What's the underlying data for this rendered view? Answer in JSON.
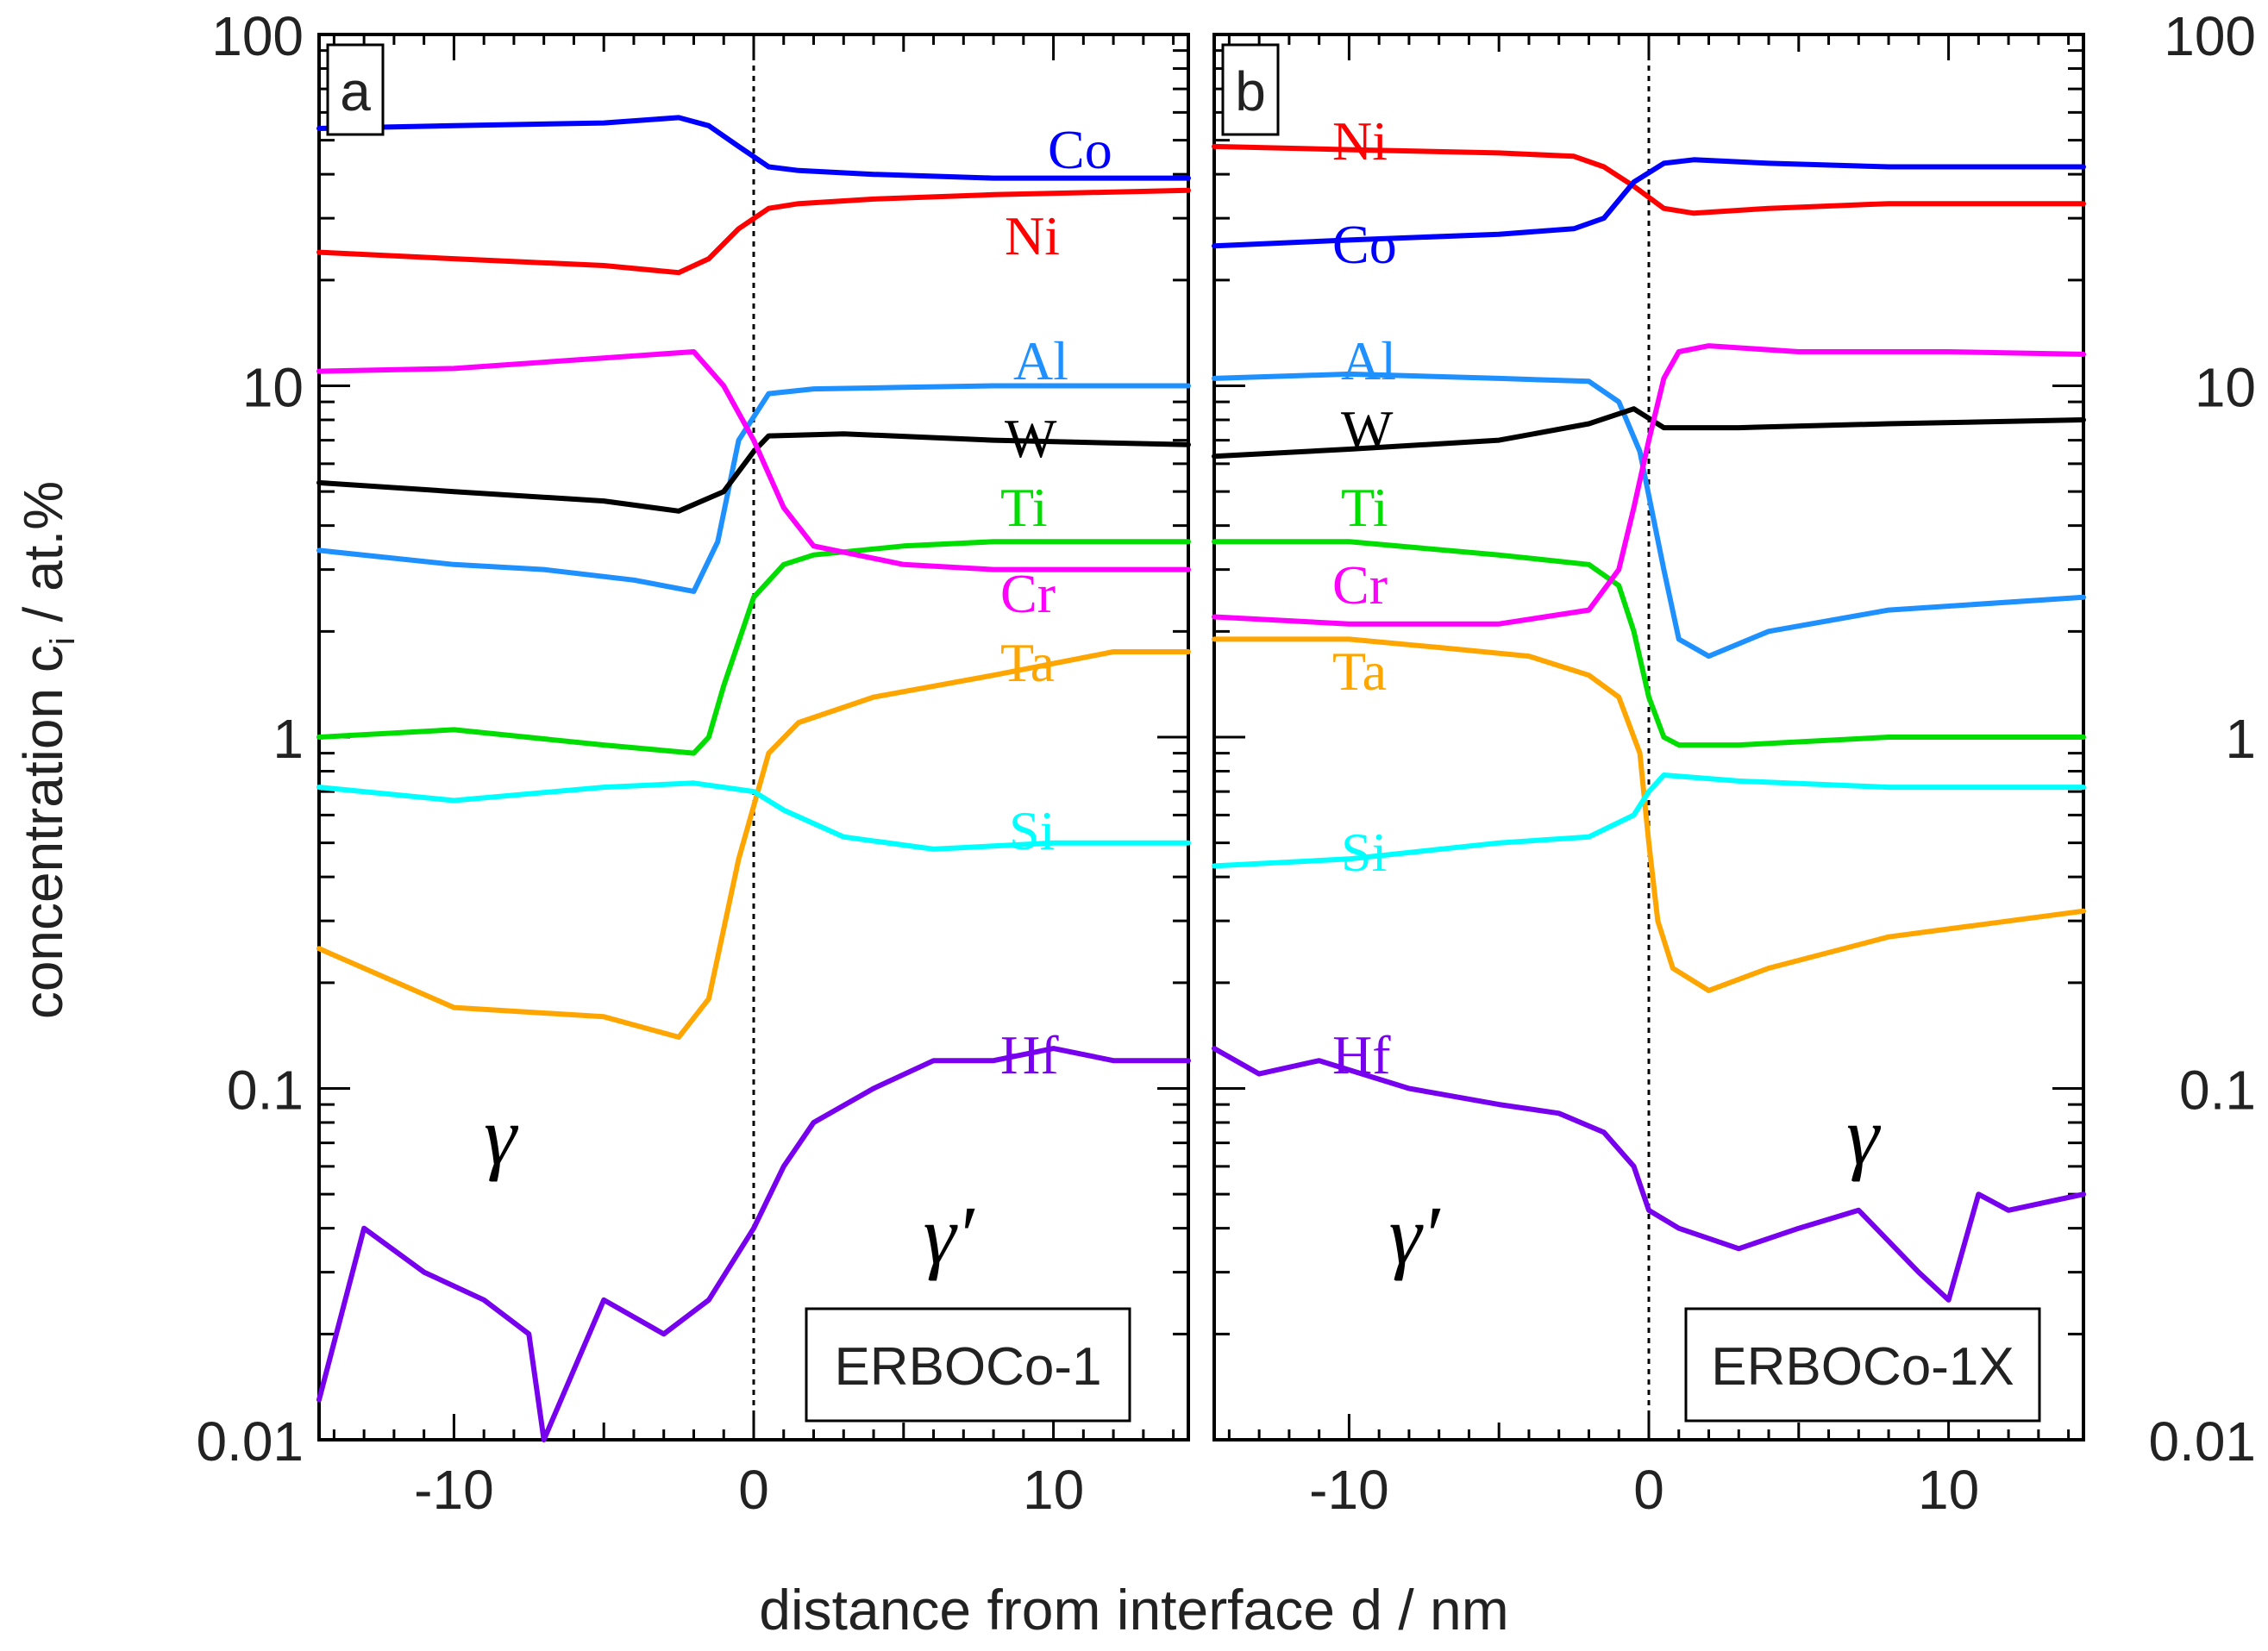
{
  "figure": {
    "ylabel": "concentration c",
    "ylabel_sub": "i",
    "ylabel_unit": " / at.%",
    "xlabel": "distance from interface d / nm"
  },
  "chart_data": [
    {
      "type": "line",
      "panel_label": "a",
      "alloy": "ERBOCo-1",
      "xlim": [
        -14.5,
        14.5
      ],
      "ylim": [
        0.01,
        100
      ],
      "yscale": "log",
      "xticks": [
        -10,
        0,
        10
      ],
      "yticks": [
        0.01,
        0.1,
        1,
        10,
        100
      ],
      "xtick_labels": [
        "-10",
        "0",
        "10"
      ],
      "ytick_labels": [
        "0.01",
        "0.1",
        "1",
        "10",
        "100"
      ],
      "phase_left": "γ",
      "phase_right": "γ′",
      "interface_line_x": 0,
      "series": [
        {
          "name": "Co",
          "color": "#0000ff",
          "x": [
            -14.5,
            -10,
            -5,
            -2.5,
            -1.5,
            -0.5,
            0.5,
            1.5,
            4,
            8,
            14.5
          ],
          "y": [
            54,
            55,
            56,
            58,
            55,
            48,
            42,
            41,
            40,
            39,
            39
          ]
        },
        {
          "name": "Ni",
          "color": "#ff0000",
          "x": [
            -14.5,
            -10,
            -5,
            -2.5,
            -1.5,
            -0.5,
            0.5,
            1.5,
            4,
            8,
            14.5
          ],
          "y": [
            24,
            23,
            22,
            21,
            23,
            28,
            32,
            33,
            34,
            35,
            36
          ]
        },
        {
          "name": "Al",
          "color": "#1e90ff",
          "x": [
            -14.5,
            -10,
            -7,
            -4,
            -2,
            -1.2,
            -0.5,
            0.5,
            2,
            5,
            8,
            14.5
          ],
          "y": [
            3.4,
            3.1,
            3.0,
            2.8,
            2.6,
            3.6,
            7.0,
            9.5,
            9.8,
            9.9,
            10.0,
            10.0
          ]
        },
        {
          "name": "W",
          "color": "#000000",
          "x": [
            -14.5,
            -10,
            -5,
            -2.5,
            -1,
            0,
            0.5,
            3,
            8,
            14.5
          ],
          "y": [
            5.3,
            5.0,
            4.7,
            4.4,
            5.0,
            6.5,
            7.2,
            7.3,
            7.0,
            6.8
          ]
        },
        {
          "name": "Ti",
          "color": "#00dd00",
          "x": [
            -14.5,
            -10,
            -5,
            -2,
            -1.5,
            -1,
            0,
            1,
            2,
            5,
            8,
            14.5
          ],
          "y": [
            1.0,
            1.05,
            0.95,
            0.9,
            1.0,
            1.4,
            2.5,
            3.1,
            3.3,
            3.5,
            3.6,
            3.6
          ]
        },
        {
          "name": "Cr",
          "color": "#ff00ff",
          "x": [
            -14.5,
            -10,
            -5,
            -2,
            -1,
            0,
            1,
            2,
            5,
            8,
            14.5
          ],
          "y": [
            11.0,
            11.2,
            12.0,
            12.5,
            10.0,
            7.0,
            4.5,
            3.5,
            3.1,
            3.0,
            3.0
          ]
        },
        {
          "name": "Ta",
          "color": "#ffa500",
          "x": [
            -14.5,
            -10,
            -5,
            -2.5,
            -1.5,
            -0.5,
            0.5,
            1.5,
            4,
            8,
            12,
            14.5
          ],
          "y": [
            0.25,
            0.17,
            0.16,
            0.14,
            0.18,
            0.45,
            0.9,
            1.1,
            1.3,
            1.5,
            1.75,
            1.75
          ]
        },
        {
          "name": "Si",
          "color": "#00ffff",
          "x": [
            -14.5,
            -10,
            -5,
            -2,
            0,
            1,
            3,
            6,
            10,
            14.5
          ],
          "y": [
            0.72,
            0.66,
            0.72,
            0.74,
            0.7,
            0.62,
            0.52,
            0.48,
            0.5,
            0.5
          ]
        },
        {
          "name": "Hf",
          "color": "#7700ee",
          "x": [
            -14.5,
            -13,
            -11,
            -9,
            -7.5,
            -7,
            -5,
            -3,
            -1.5,
            0,
            1,
            2,
            4,
            6,
            8,
            10,
            12,
            14.5
          ],
          "y": [
            0.013,
            0.04,
            0.03,
            0.025,
            0.02,
            0.01,
            0.025,
            0.02,
            0.025,
            0.04,
            0.06,
            0.08,
            0.1,
            0.12,
            0.12,
            0.13,
            0.12,
            0.12
          ]
        }
      ]
    },
    {
      "type": "line",
      "panel_label": "b",
      "alloy": "ERBOCo-1X",
      "xlim": [
        -14.5,
        14.5
      ],
      "ylim": [
        0.01,
        100
      ],
      "yscale": "log",
      "xticks": [
        -10,
        0,
        10
      ],
      "yticks": [
        0.01,
        0.1,
        1,
        10,
        100
      ],
      "xtick_labels": [
        "-10",
        "0",
        "10"
      ],
      "ytick_labels": [
        "0.01",
        "0.1",
        "1",
        "10",
        "100"
      ],
      "phase_left": "γ′",
      "phase_right": "γ",
      "interface_line_x": 0,
      "series": [
        {
          "name": "Ni",
          "color": "#ff0000",
          "x": [
            -14.5,
            -10,
            -5,
            -2.5,
            -1.5,
            -0.5,
            0.5,
            1.5,
            4,
            8,
            14.5
          ],
          "y": [
            48,
            47,
            46,
            45,
            42,
            37,
            32,
            31,
            32,
            33,
            33
          ]
        },
        {
          "name": "Co",
          "color": "#0000ff",
          "x": [
            -14.5,
            -10,
            -5,
            -2.5,
            -1.5,
            -0.5,
            0.5,
            1.5,
            4,
            8,
            14.5
          ],
          "y": [
            25,
            26,
            27,
            28,
            30,
            38,
            43,
            44,
            43,
            42,
            42
          ]
        },
        {
          "name": "Al",
          "color": "#1e90ff",
          "x": [
            -14.5,
            -10,
            -5,
            -2,
            -1,
            -0.3,
            0.5,
            1,
            2,
            4,
            8,
            14.5
          ],
          "y": [
            10.5,
            10.8,
            10.5,
            10.3,
            9.0,
            6.5,
            3.0,
            1.9,
            1.7,
            2.0,
            2.3,
            2.5
          ]
        },
        {
          "name": "W",
          "color": "#000000",
          "x": [
            -14.5,
            -10,
            -5,
            -2,
            -0.5,
            0.5,
            3,
            8,
            14.5
          ],
          "y": [
            6.3,
            6.6,
            7.0,
            7.8,
            8.6,
            7.6,
            7.6,
            7.8,
            8.0
          ]
        },
        {
          "name": "Ti",
          "color": "#00dd00",
          "x": [
            -14.5,
            -10,
            -5,
            -2,
            -1,
            -0.5,
            0,
            0.5,
            1,
            3,
            8,
            14.5
          ],
          "y": [
            3.6,
            3.6,
            3.3,
            3.1,
            2.7,
            2.0,
            1.3,
            1.0,
            0.95,
            0.95,
            1.0,
            1.0
          ]
        },
        {
          "name": "Cr",
          "color": "#ff00ff",
          "x": [
            -14.5,
            -10,
            -5,
            -2,
            -1,
            -0.5,
            0,
            0.5,
            1,
            2,
            5,
            10,
            14.5
          ],
          "y": [
            2.2,
            2.1,
            2.1,
            2.3,
            3.0,
            4.5,
            7.0,
            10.5,
            12.5,
            13.0,
            12.5,
            12.5,
            12.3
          ]
        },
        {
          "name": "Ta",
          "color": "#ffa500",
          "x": [
            -14.5,
            -10,
            -7,
            -4,
            -2,
            -1,
            -0.3,
            0,
            0.3,
            0.8,
            2,
            4,
            8,
            14.5
          ],
          "y": [
            1.9,
            1.9,
            1.8,
            1.7,
            1.5,
            1.3,
            0.9,
            0.5,
            0.3,
            0.22,
            0.19,
            0.22,
            0.27,
            0.32
          ]
        },
        {
          "name": "Si",
          "color": "#00ffff",
          "x": [
            -14.5,
            -10,
            -5,
            -2,
            -0.5,
            0,
            0.5,
            3,
            8,
            14.5
          ],
          "y": [
            0.43,
            0.45,
            0.5,
            0.52,
            0.6,
            0.7,
            0.78,
            0.75,
            0.72,
            0.72
          ]
        },
        {
          "name": "Hf",
          "color": "#7700ee",
          "x": [
            -14.5,
            -13,
            -11,
            -8,
            -5,
            -3,
            -1.5,
            -0.5,
            0,
            1,
            3,
            5,
            7,
            9,
            10,
            11,
            12,
            14.5
          ],
          "y": [
            0.13,
            0.11,
            0.12,
            0.1,
            0.09,
            0.085,
            0.075,
            0.06,
            0.045,
            0.04,
            0.035,
            0.04,
            0.045,
            0.03,
            0.025,
            0.05,
            0.045,
            0.05
          ]
        }
      ]
    }
  ]
}
